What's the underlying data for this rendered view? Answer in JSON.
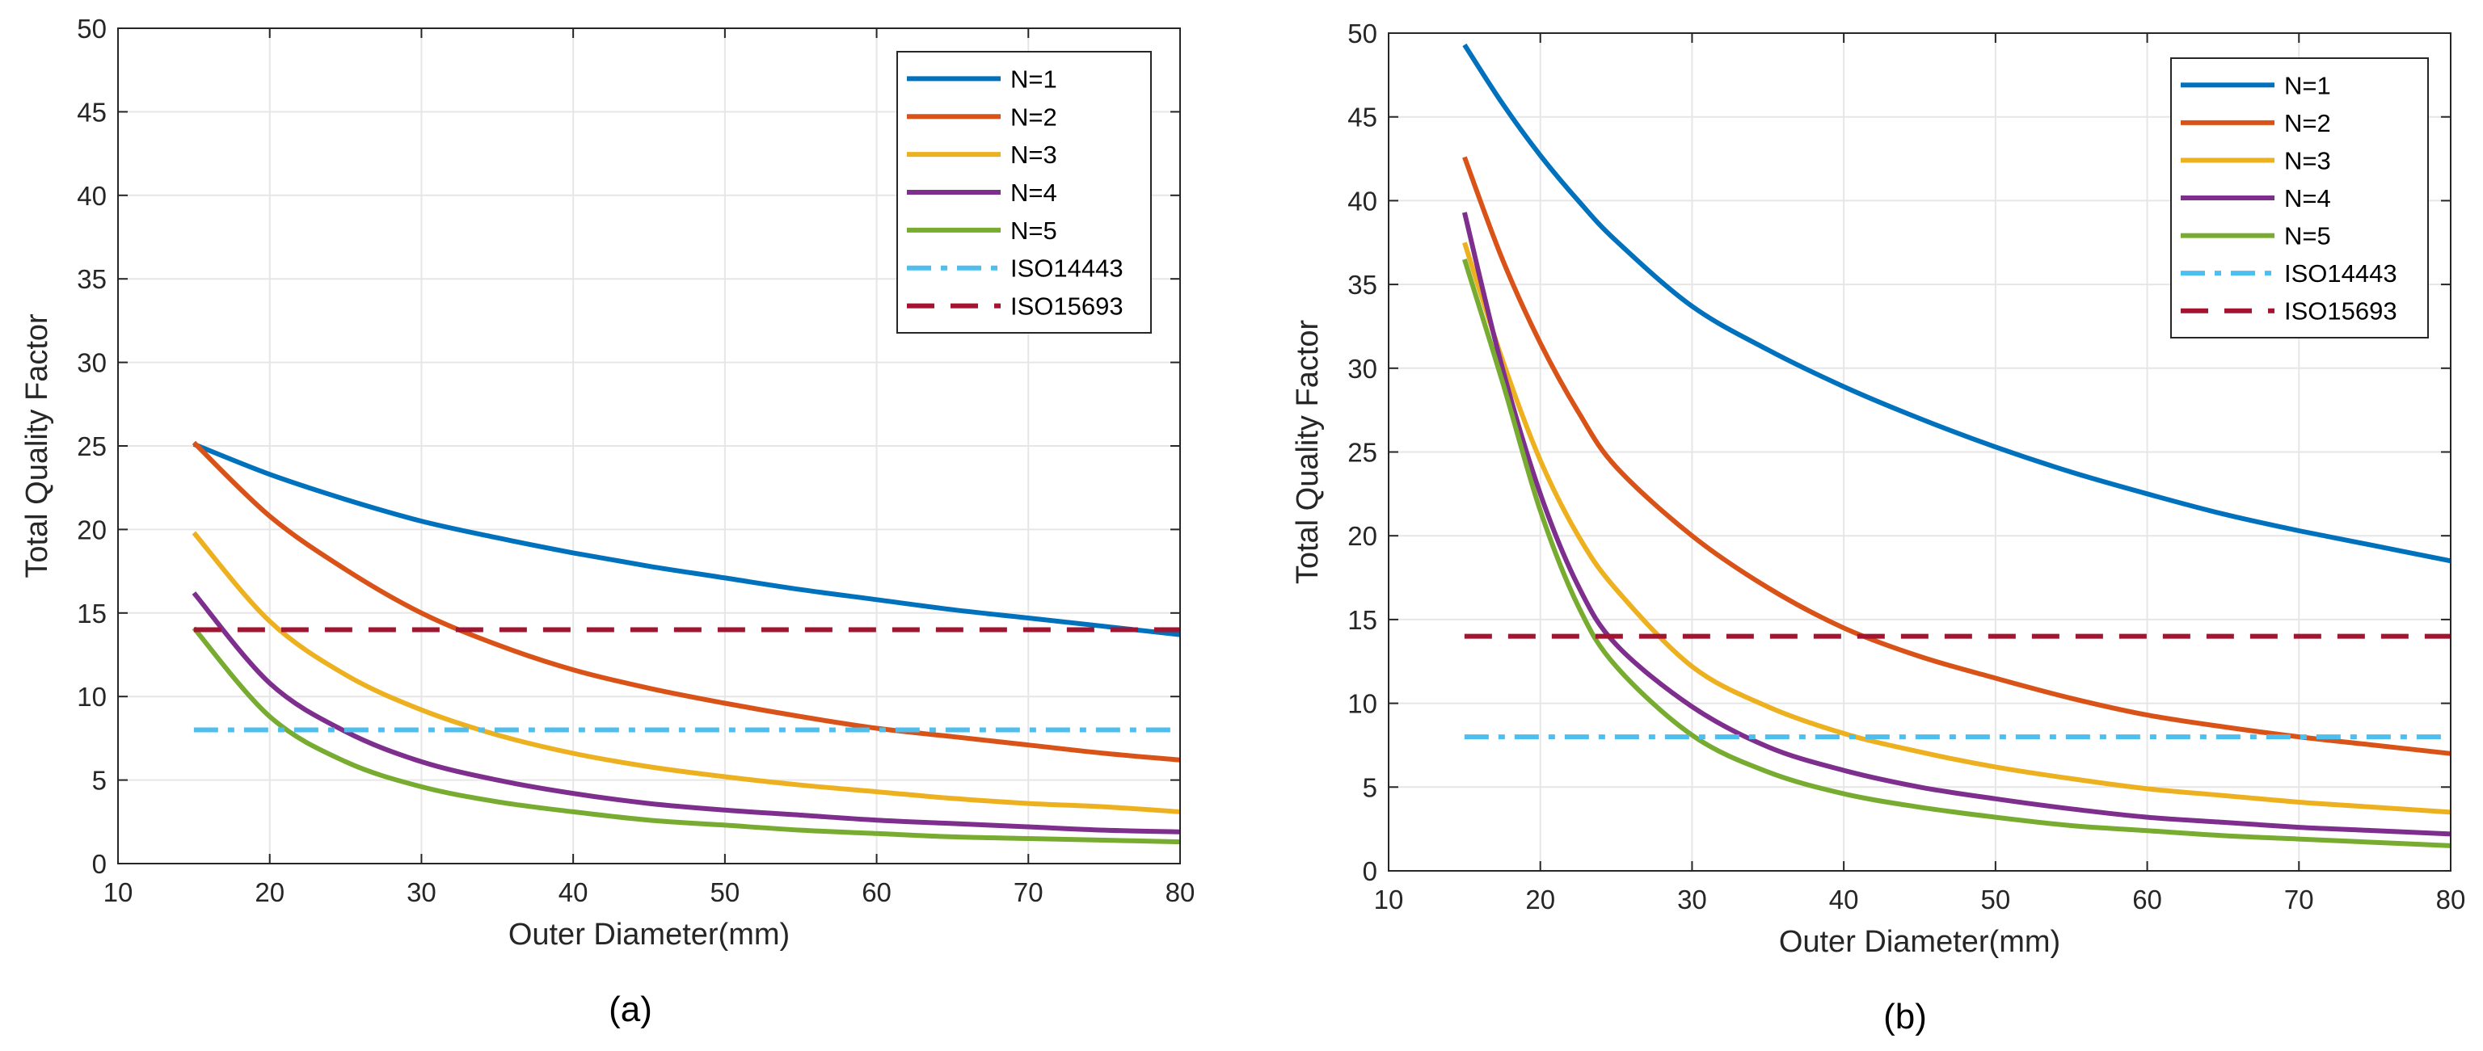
{
  "chart_data": [
    {
      "type": "line",
      "caption": "(a)",
      "xlabel": "Outer Diameter(mm)",
      "ylabel": "Total Quality Factor",
      "xlim": [
        10,
        80
      ],
      "ylim": [
        0,
        50
      ],
      "xticks": [
        "10",
        "20",
        "30",
        "40",
        "50",
        "60",
        "70",
        "80"
      ],
      "yticks": [
        "0",
        "5",
        "10",
        "15",
        "20",
        "25",
        "30",
        "35",
        "40",
        "45",
        "50"
      ],
      "grid": true,
      "legend_position": "top-right",
      "x": [
        15,
        20,
        25,
        30,
        35,
        40,
        45,
        50,
        55,
        60,
        65,
        70,
        75,
        80
      ],
      "series": [
        {
          "name": "N=1",
          "color": "#0072BD",
          "style": "solid",
          "values": [
            25.1,
            23.3,
            21.8,
            20.5,
            19.5,
            18.6,
            17.8,
            17.1,
            16.4,
            15.8,
            15.2,
            14.7,
            14.2,
            13.7
          ]
        },
        {
          "name": "N=2",
          "color": "#D95319",
          "style": "solid",
          "values": [
            25.2,
            20.8,
            17.6,
            15.0,
            13.1,
            11.6,
            10.5,
            9.6,
            8.8,
            8.1,
            7.6,
            7.1,
            6.6,
            6.2
          ]
        },
        {
          "name": "N=3",
          "color": "#EDB120",
          "style": "solid",
          "values": [
            19.8,
            14.5,
            11.3,
            9.2,
            7.7,
            6.6,
            5.8,
            5.2,
            4.7,
            4.3,
            3.9,
            3.6,
            3.4,
            3.1
          ]
        },
        {
          "name": "N=4",
          "color": "#7E2F8E",
          "style": "solid",
          "values": [
            16.2,
            10.8,
            7.9,
            6.1,
            5.0,
            4.2,
            3.6,
            3.2,
            2.9,
            2.6,
            2.4,
            2.2,
            2.0,
            1.9
          ]
        },
        {
          "name": "N=5",
          "color": "#77AC30",
          "style": "solid",
          "values": [
            14.1,
            8.8,
            6.1,
            4.6,
            3.7,
            3.1,
            2.6,
            2.3,
            2.0,
            1.8,
            1.6,
            1.5,
            1.4,
            1.3
          ]
        },
        {
          "name": "ISO14443",
          "color": "#4DBEEE",
          "style": "dashdot",
          "values": [
            8,
            8,
            8,
            8,
            8,
            8,
            8,
            8,
            8,
            8,
            8,
            8,
            8,
            8
          ]
        },
        {
          "name": "ISO15693",
          "color": "#A2142F",
          "style": "dashed",
          "values": [
            14,
            14,
            14,
            14,
            14,
            14,
            14,
            14,
            14,
            14,
            14,
            14,
            14,
            14
          ]
        }
      ]
    },
    {
      "type": "line",
      "caption": "(b)",
      "xlabel": "Outer Diameter(mm)",
      "ylabel": "Total Quality Factor",
      "xlim": [
        10,
        80
      ],
      "ylim": [
        0,
        50
      ],
      "xticks": [
        "10",
        "20",
        "30",
        "40",
        "50",
        "60",
        "70",
        "80"
      ],
      "yticks": [
        "0",
        "5",
        "10",
        "15",
        "20",
        "25",
        "30",
        "35",
        "40",
        "45",
        "50"
      ],
      "grid": true,
      "legend_position": "top-right",
      "x": [
        15,
        17.5,
        20,
        22.5,
        25,
        30,
        35,
        40,
        45,
        50,
        55,
        60,
        65,
        70,
        75,
        80
      ],
      "series": [
        {
          "name": "N=1",
          "color": "#0072BD",
          "style": "solid",
          "values": [
            49.3,
            45.8,
            42.7,
            40.0,
            37.6,
            33.7,
            31.1,
            28.9,
            27.0,
            25.3,
            23.8,
            22.5,
            21.3,
            20.3,
            19.4,
            18.5
          ]
        },
        {
          "name": "N=2",
          "color": "#D95319",
          "style": "solid",
          "values": [
            42.6,
            36.5,
            31.5,
            27.4,
            24.1,
            20.0,
            16.9,
            14.5,
            12.8,
            11.5,
            10.3,
            9.3,
            8.6,
            8.0,
            7.5,
            7.0
          ]
        },
        {
          "name": "N=3",
          "color": "#EDB120",
          "style": "solid",
          "values": [
            37.5,
            30.5,
            24.5,
            20.0,
            16.8,
            12.2,
            9.8,
            8.2,
            7.1,
            6.2,
            5.5,
            4.9,
            4.5,
            4.1,
            3.8,
            3.5
          ]
        },
        {
          "name": "N=4",
          "color": "#7E2F8E",
          "style": "solid",
          "values": [
            39.3,
            30.0,
            22.5,
            17.0,
            13.5,
            9.8,
            7.4,
            6.0,
            5.0,
            4.3,
            3.7,
            3.2,
            2.9,
            2.6,
            2.4,
            2.2
          ]
        },
        {
          "name": "N=5",
          "color": "#77AC30",
          "style": "solid",
          "values": [
            36.5,
            29.2,
            21.5,
            15.8,
            12.2,
            8.1,
            5.9,
            4.6,
            3.8,
            3.2,
            2.7,
            2.4,
            2.1,
            1.9,
            1.7,
            1.5
          ]
        },
        {
          "name": "ISO14443",
          "color": "#4DBEEE",
          "style": "dashdot",
          "values": [
            8,
            8,
            8,
            8,
            8,
            8,
            8,
            8,
            8,
            8,
            8,
            8,
            8,
            8,
            8,
            8
          ]
        },
        {
          "name": "ISO15693",
          "color": "#A2142F",
          "style": "dashed",
          "values": [
            14,
            14,
            14,
            14,
            14,
            14,
            14,
            14,
            14,
            14,
            14,
            14,
            14,
            14,
            14,
            14
          ]
        }
      ]
    }
  ]
}
